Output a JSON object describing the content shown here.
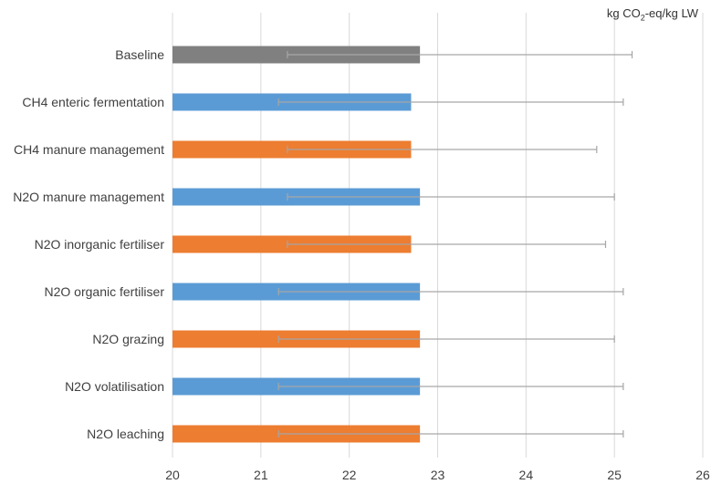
{
  "chart_data": {
    "type": "bar",
    "orientation": "horizontal",
    "unit_label": {
      "prefix": "kg CO",
      "sub": "2",
      "suffix": "-eq/kg LW"
    },
    "categories": [
      "Baseline",
      "CH4 enteric fermentation",
      "CH4 manure management",
      "N2O manure management",
      "N2O inorganic fertiliser",
      "N2O organic fertiliser",
      "N2O grazing",
      "N2O volatilisation",
      "N2O leaching"
    ],
    "values": [
      22.8,
      22.7,
      22.7,
      22.8,
      22.7,
      22.8,
      22.8,
      22.8,
      22.8
    ],
    "error_low": [
      21.3,
      21.2,
      21.3,
      21.3,
      21.3,
      21.2,
      21.2,
      21.2,
      21.2
    ],
    "error_high": [
      25.2,
      25.1,
      24.8,
      25.0,
      24.9,
      25.1,
      25.0,
      25.1,
      25.1
    ],
    "bar_colors": [
      "#808080",
      "#5b9bd5",
      "#ed7d31",
      "#5b9bd5",
      "#ed7d31",
      "#5b9bd5",
      "#ed7d31",
      "#5b9bd5",
      "#ed7d31"
    ],
    "error_color": "#a6a6a6",
    "grid_color": "#d9d9d9",
    "xlim": [
      20,
      26
    ],
    "xticks": [
      "20",
      "21",
      "22",
      "23",
      "24",
      "25",
      "26"
    ],
    "grid": true
  }
}
